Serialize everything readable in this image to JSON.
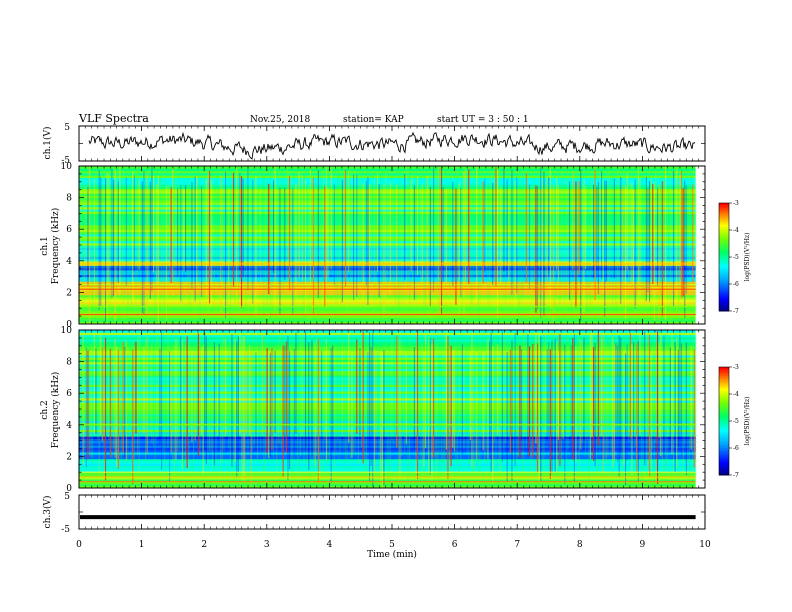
{
  "header": {
    "title": "VLF Spectra",
    "date": "Nov.25, 2018",
    "station": "station= KAP",
    "start": "start  UT  =   3  : 50 : 1"
  },
  "chart_data": [
    {
      "type": "line",
      "ylabel": "ch.1(V)",
      "ylim": [
        -5,
        5
      ],
      "yticks": [
        "5",
        "-5"
      ],
      "xlim": [
        0,
        10
      ]
    },
    {
      "type": "heatmap",
      "ylabel": "ch.1\nFrequency (kHz)",
      "ylim": [
        0,
        10
      ],
      "yticks": [
        "0",
        "2",
        "4",
        "6",
        "8",
        "10"
      ],
      "xlim": [
        0,
        10
      ],
      "colorbar": {
        "label": "log(PSD)(V²/Hz)",
        "ticks": [
          "-3",
          "-4",
          "-5",
          "-6",
          "-7"
        ],
        "range": [
          -7,
          -3
        ]
      }
    },
    {
      "type": "heatmap",
      "ylabel": "ch.2\nFrequency (kHz)",
      "ylim": [
        0,
        10
      ],
      "yticks": [
        "0",
        "2",
        "4",
        "6",
        "8",
        "10"
      ],
      "xlim": [
        0,
        10
      ],
      "colorbar": {
        "label": "log(PSD)(V²/Hz)",
        "ticks": [
          "-3",
          "-4",
          "-5",
          "-6",
          "-7"
        ],
        "range": [
          -7,
          -3
        ]
      }
    },
    {
      "type": "line",
      "ylabel": "ch.3(V)",
      "ylim": [
        -5,
        5
      ],
      "yticks": [
        "5",
        "-5"
      ],
      "xlim": [
        0,
        10
      ],
      "constant_value": -1.5
    }
  ],
  "x_axis": {
    "label": "Time  (min)",
    "ticks": [
      "0",
      "1",
      "2",
      "3",
      "4",
      "5",
      "6",
      "7",
      "8",
      "9",
      "10"
    ],
    "data_end": 9.85
  },
  "colors": [
    "#00008b",
    "#0000ff",
    "#00aaff",
    "#00ffff",
    "#00ff66",
    "#66ff00",
    "#ffff00",
    "#ff8800",
    "#ff0000",
    "#ff3366"
  ]
}
